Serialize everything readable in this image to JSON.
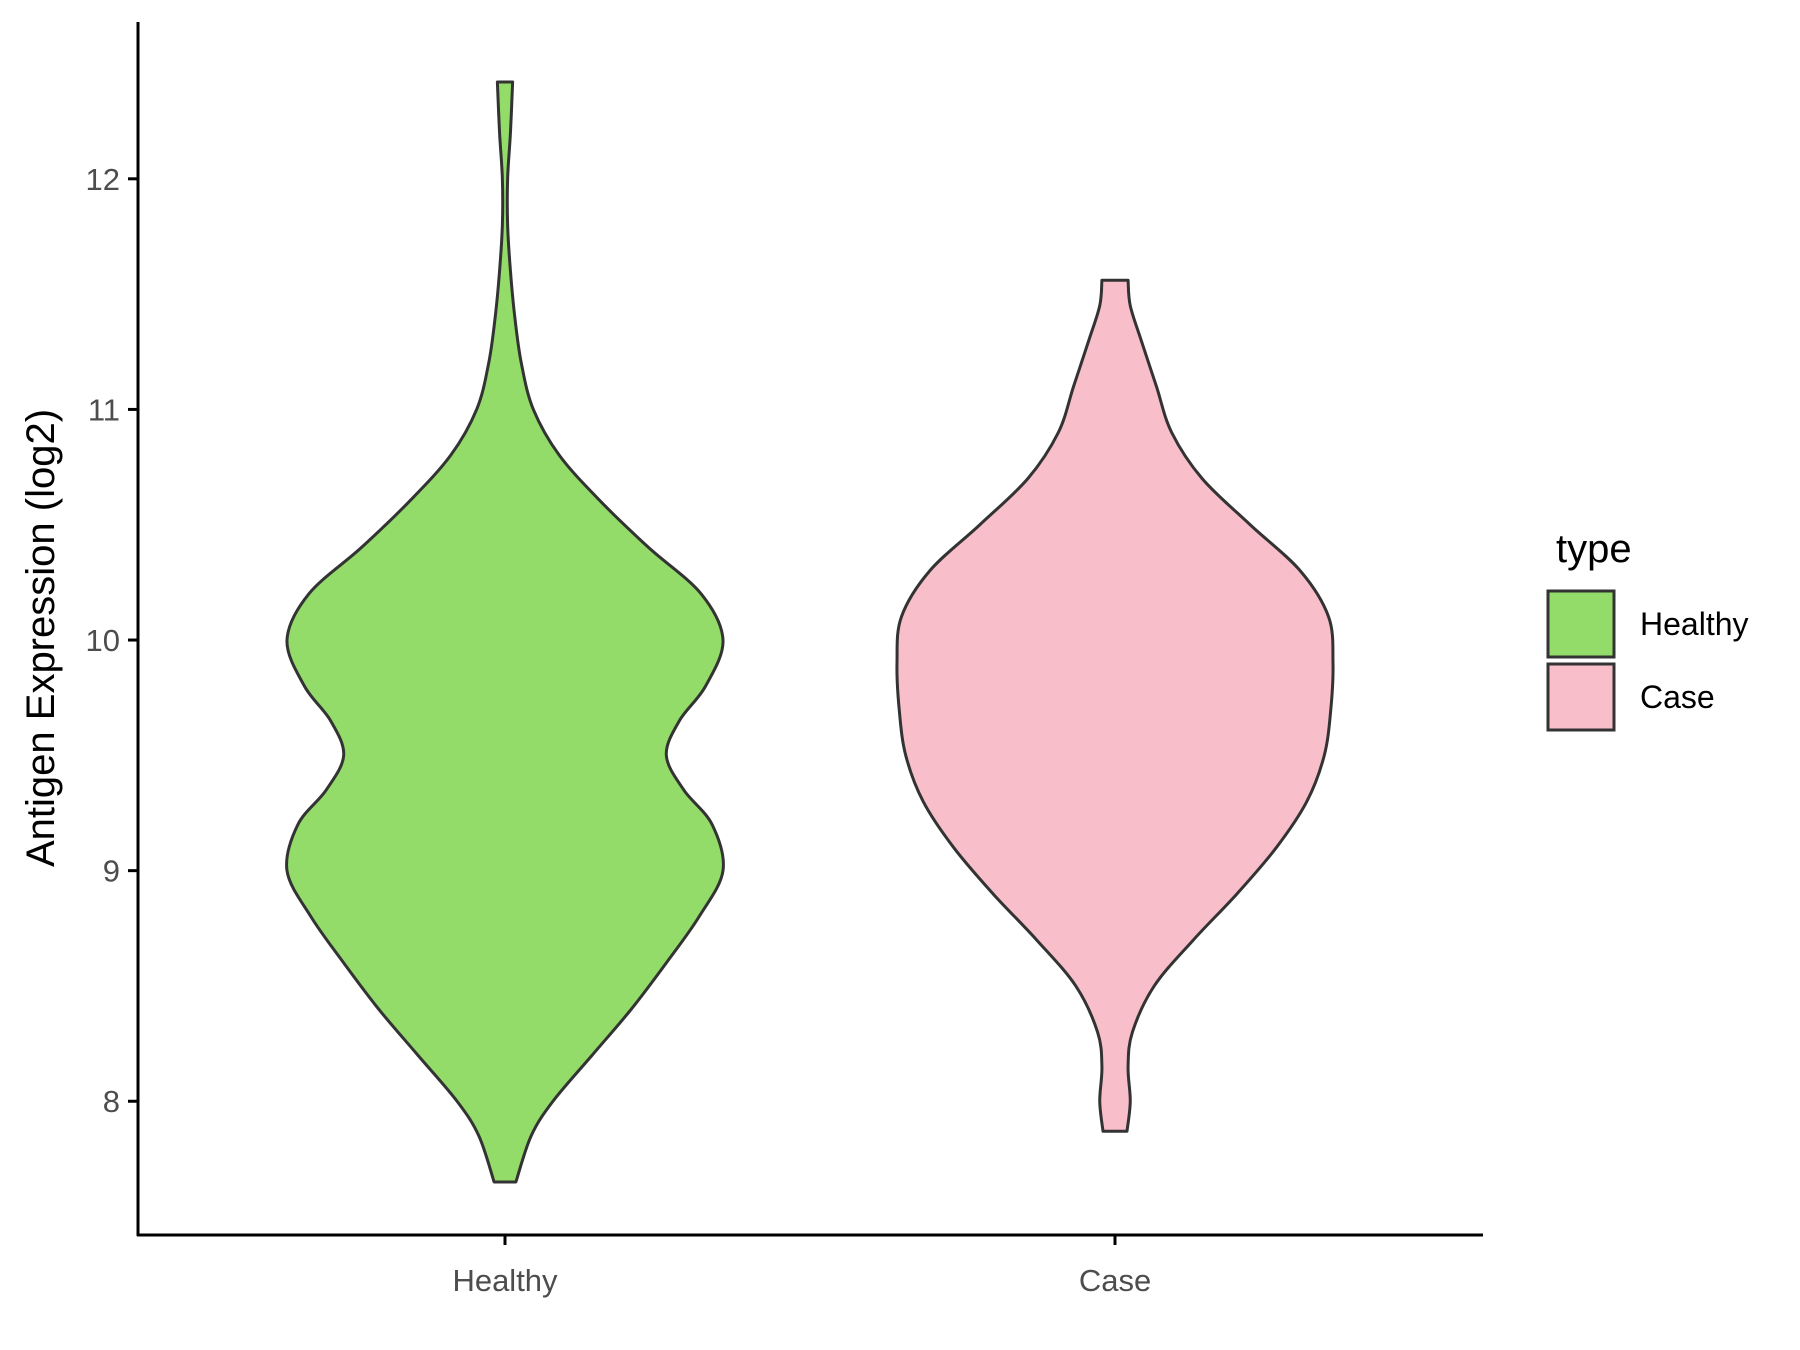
{
  "chart_data": {
    "type": "violin",
    "title": "",
    "xlabel": "",
    "ylabel": "Antigen Expression (log2)",
    "categories": [
      "Healthy",
      "Case"
    ],
    "ylim": [
      7.42,
      12.68
    ],
    "yticks": [
      8,
      9,
      10,
      11,
      12
    ],
    "grid": false,
    "legend": {
      "title": "type",
      "position": "right",
      "entries": [
        {
          "label": "Healthy",
          "color": "#93DC6A"
        },
        {
          "label": "Case",
          "color": "#F8BFCB"
        }
      ]
    },
    "outline_color": "#333333",
    "series": [
      {
        "category": "Healthy",
        "color": "#93DC6A",
        "min": 7.65,
        "max": 12.42,
        "density": [
          [
            7.65,
            0.05
          ],
          [
            7.85,
            0.12
          ],
          [
            8.0,
            0.22
          ],
          [
            8.2,
            0.4
          ],
          [
            8.4,
            0.58
          ],
          [
            8.6,
            0.74
          ],
          [
            8.8,
            0.89
          ],
          [
            9.0,
            1.0
          ],
          [
            9.2,
            0.95
          ],
          [
            9.35,
            0.82
          ],
          [
            9.5,
            0.74
          ],
          [
            9.65,
            0.8
          ],
          [
            9.8,
            0.92
          ],
          [
            10.0,
            1.0
          ],
          [
            10.2,
            0.9
          ],
          [
            10.4,
            0.66
          ],
          [
            10.6,
            0.44
          ],
          [
            10.8,
            0.25
          ],
          [
            11.0,
            0.13
          ],
          [
            11.2,
            0.075
          ],
          [
            11.4,
            0.045
          ],
          [
            11.6,
            0.025
          ],
          [
            11.8,
            0.012
          ],
          [
            12.0,
            0.012
          ],
          [
            12.2,
            0.025
          ],
          [
            12.42,
            0.035
          ]
        ]
      },
      {
        "category": "Case",
        "color": "#F8BFCB",
        "min": 7.87,
        "max": 11.56,
        "density": [
          [
            7.87,
            0.055
          ],
          [
            8.0,
            0.07
          ],
          [
            8.15,
            0.06
          ],
          [
            8.3,
            0.08
          ],
          [
            8.5,
            0.18
          ],
          [
            8.7,
            0.36
          ],
          [
            8.9,
            0.56
          ],
          [
            9.1,
            0.74
          ],
          [
            9.3,
            0.88
          ],
          [
            9.5,
            0.96
          ],
          [
            9.7,
            0.99
          ],
          [
            9.9,
            1.0
          ],
          [
            10.1,
            0.98
          ],
          [
            10.3,
            0.85
          ],
          [
            10.5,
            0.62
          ],
          [
            10.7,
            0.4
          ],
          [
            10.9,
            0.26
          ],
          [
            11.1,
            0.19
          ],
          [
            11.3,
            0.12
          ],
          [
            11.45,
            0.07
          ],
          [
            11.56,
            0.06
          ]
        ]
      }
    ]
  }
}
